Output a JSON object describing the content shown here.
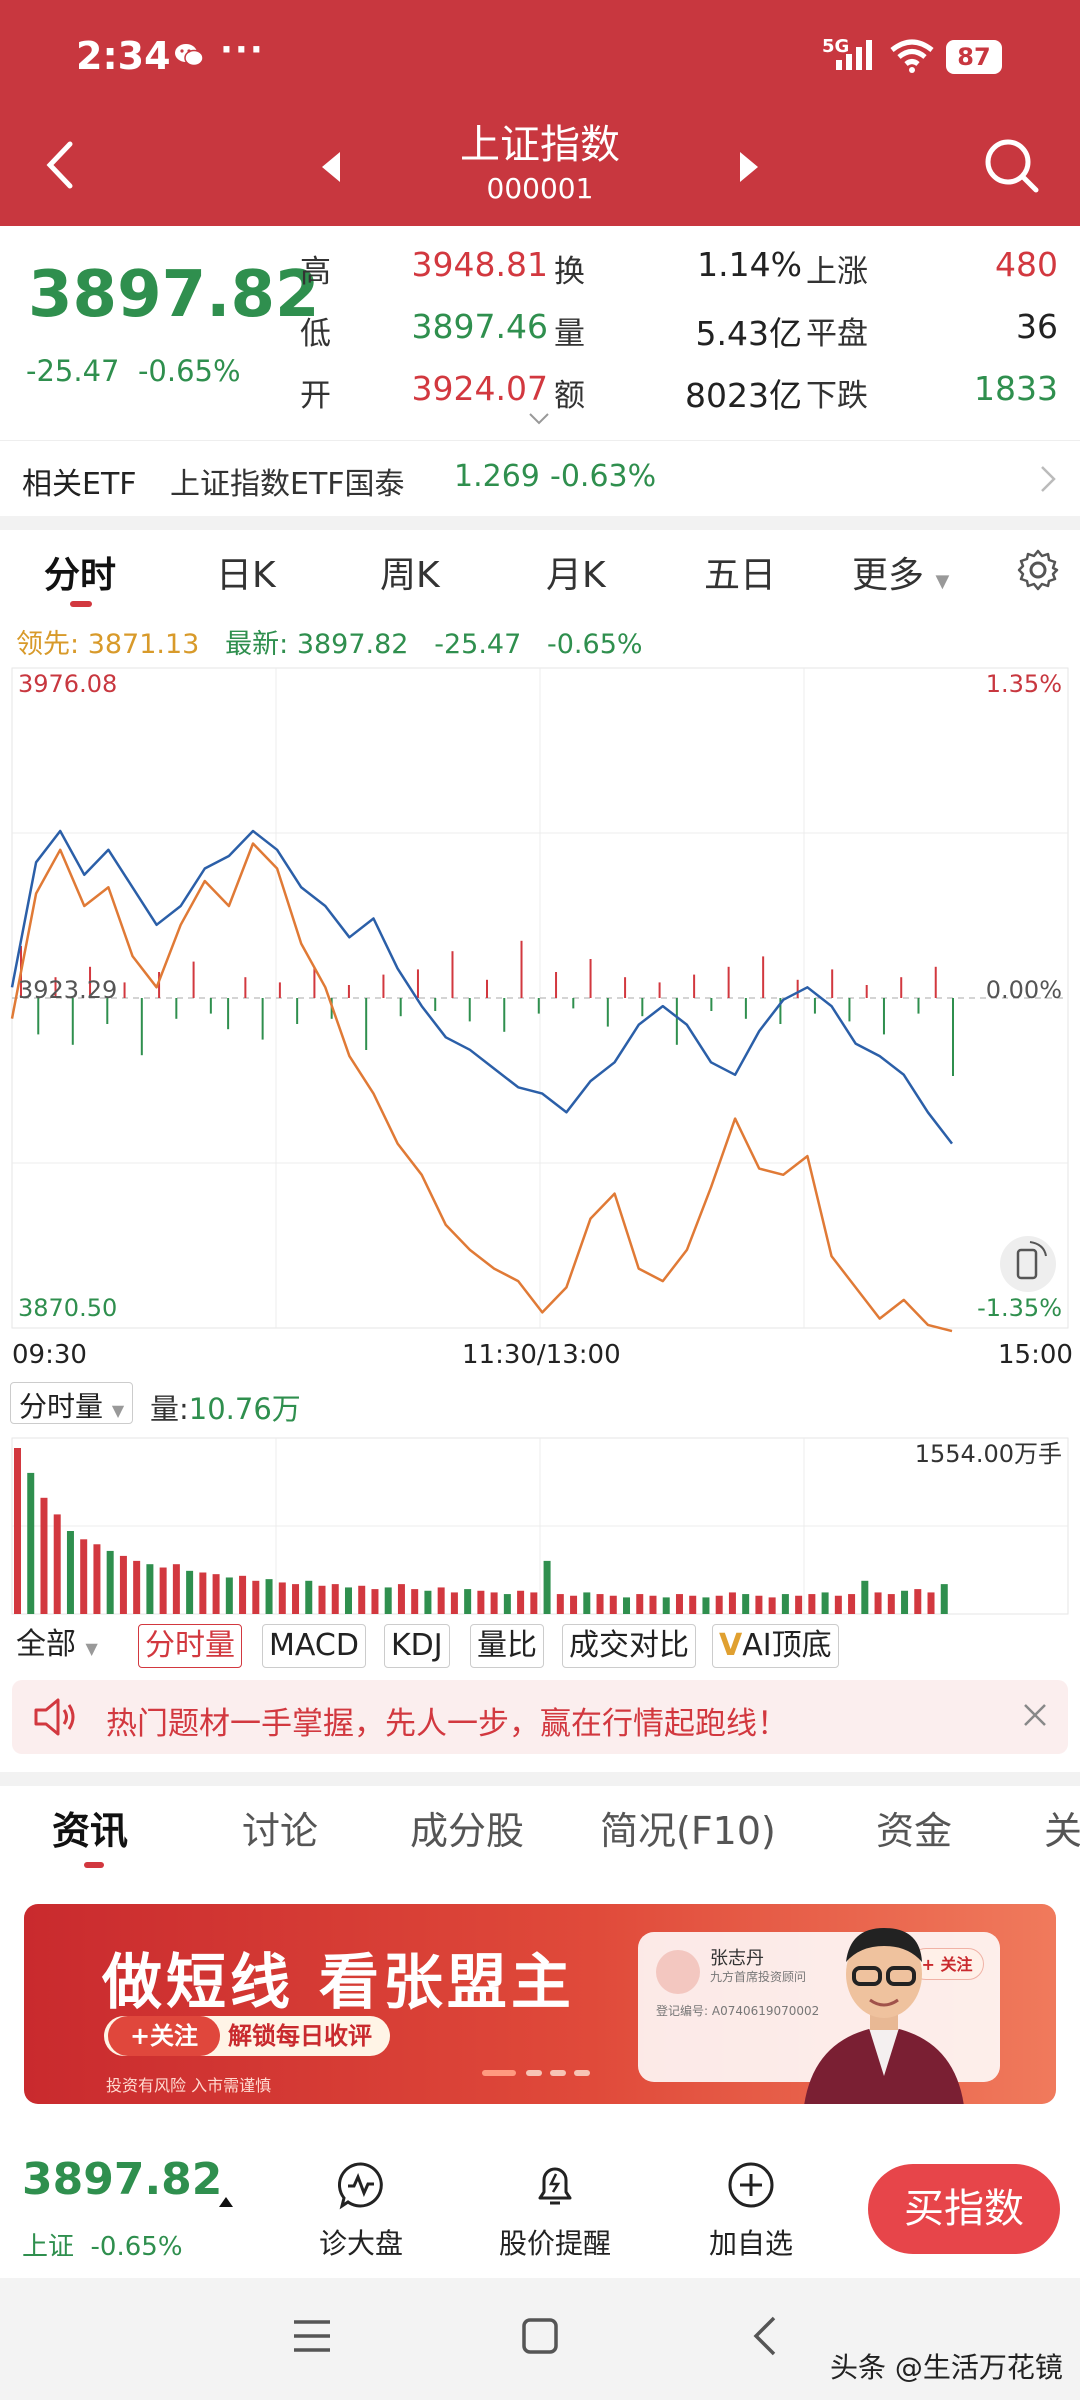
{
  "status_bar": {
    "time": "2:34",
    "dots": "···",
    "network": "5G",
    "battery": "87",
    "icons": [
      "wechat-icon",
      "signal-icon",
      "wifi-icon",
      "battery-icon"
    ]
  },
  "header": {
    "title": "上证指数",
    "code": "000001"
  },
  "quote": {
    "price": "3897.82",
    "change": "-25.47",
    "change_pct": "-0.65%",
    "high_label": "高",
    "high": "3948.81",
    "low_label": "低",
    "low": "3897.46",
    "open_label": "开",
    "open": "3924.07",
    "turnover_label": "换",
    "turnover": "1.14%",
    "volume_label": "量",
    "volume": "5.43亿",
    "amount_label": "额",
    "amount": "8023亿",
    "up_label": "上涨",
    "up_count": "480",
    "flat_label": "平盘",
    "flat_count": "36",
    "down_label": "下跌",
    "down_count": "1833"
  },
  "etf": {
    "label": "相关ETF",
    "name": "上证指数ETF国泰",
    "price": "1.269",
    "pct": "-0.63%"
  },
  "chart_tabs": [
    "分时",
    "日K",
    "周K",
    "月K",
    "五日",
    "更多"
  ],
  "legend": {
    "leader_label": "领先:",
    "leader_value": "3871.13",
    "latest_label": "最新:",
    "latest_value": "3897.82",
    "change": "-25.47",
    "pct": "-0.65%"
  },
  "chart_data": {
    "type": "line",
    "y_max_label": "3976.08",
    "y_mid_label": "3923.29",
    "y_min_label": "3870.50",
    "pct_max_label": "1.35%",
    "pct_mid_label": "0.00%",
    "pct_min_label": "-1.35%",
    "x_labels": [
      "09:30",
      "11:30/13:00",
      "15:00"
    ],
    "ylim": [
      3870.5,
      3976.08
    ],
    "prev_close": 3923.29,
    "series": [
      {
        "color": "#2b5fa8",
        "values": [
          3925,
          3945,
          3950,
          3943,
          3947,
          3941,
          3935,
          3938,
          3944,
          3946,
          3950,
          3947,
          3941,
          3938,
          3933,
          3936,
          3928,
          3922,
          3917,
          3915,
          3912,
          3909,
          3908,
          3905,
          3910,
          3913,
          3919,
          3922,
          3919,
          3913,
          3911,
          3918,
          3923,
          3925,
          3922,
          3916,
          3914,
          3911,
          3905,
          3900
        ]
      },
      {
        "color": "#e07a36",
        "values": [
          3920,
          3940,
          3947,
          3938,
          3941,
          3930,
          3925,
          3935,
          3942,
          3938,
          3948,
          3944,
          3932,
          3925,
          3914,
          3908,
          3900,
          3895,
          3887,
          3883,
          3880,
          3878,
          3873,
          3877,
          3888,
          3892,
          3880,
          3878,
          3883,
          3893,
          3904,
          3896,
          3895,
          3898,
          3882,
          3877,
          3872,
          3875,
          3871,
          3870
        ]
      }
    ],
    "bars": [
      20,
      -14,
      8,
      -18,
      12,
      -10,
      6,
      -22,
      10,
      -8,
      14,
      -6,
      -12,
      8,
      -16,
      6,
      -10,
      12,
      -8,
      5,
      -20,
      9,
      -7,
      11,
      -5,
      18,
      -9,
      7,
      -13,
      22,
      -6,
      10,
      -4,
      15,
      -11,
      8,
      -7,
      6,
      -18,
      9,
      -5,
      12,
      -8,
      16,
      -10,
      7,
      -6,
      11,
      -9,
      5,
      -14,
      8,
      -6,
      12,
      -30
    ]
  },
  "volume": {
    "selector": "分时量",
    "label": "量:",
    "value": "10.76万",
    "max_label": "1554.00万手",
    "bars": [
      100,
      85,
      70,
      60,
      50,
      45,
      42,
      38,
      35,
      32,
      30,
      28,
      30,
      26,
      25,
      24,
      22,
      23,
      20,
      21,
      19,
      18,
      20,
      17,
      18,
      16,
      17,
      15,
      16,
      18,
      15,
      14,
      16,
      13,
      15,
      14,
      13,
      12,
      14,
      13,
      32,
      12,
      11,
      13,
      12,
      11,
      10,
      12,
      11,
      10,
      12,
      11,
      10,
      11,
      13,
      12,
      11,
      10,
      12,
      11,
      12,
      13,
      11,
      12,
      20,
      13,
      12,
      14,
      15,
      13,
      18
    ]
  },
  "indicators": [
    "全部",
    "分时量",
    "MACD",
    "KDJ",
    "量比",
    "成交对比",
    "AI顶底"
  ],
  "promo": {
    "text": "热门题材一手掌握，先人一步，赢在行情起跑线！"
  },
  "news_tabs": [
    "资讯",
    "讨论",
    "成分股",
    "简况(F10)",
    "资金",
    "关"
  ],
  "ad": {
    "title": "做短线 看张盟主",
    "follow": "+关注",
    "unlock": "解锁每日收评",
    "risk": "投资有风险  入市需谨慎",
    "card_name": "张志丹",
    "card_org": "九方首席投资顾问",
    "card_reg": "登记编号: A0740619070002",
    "card_follow": "+ 关注"
  },
  "bottom": {
    "price": "3897.82",
    "name": "上证",
    "pct": "-0.65%",
    "actions": [
      "诊大盘",
      "股价提醒",
      "加自选"
    ],
    "buy": "买指数"
  },
  "watermark": "头条 @生活万花镜"
}
